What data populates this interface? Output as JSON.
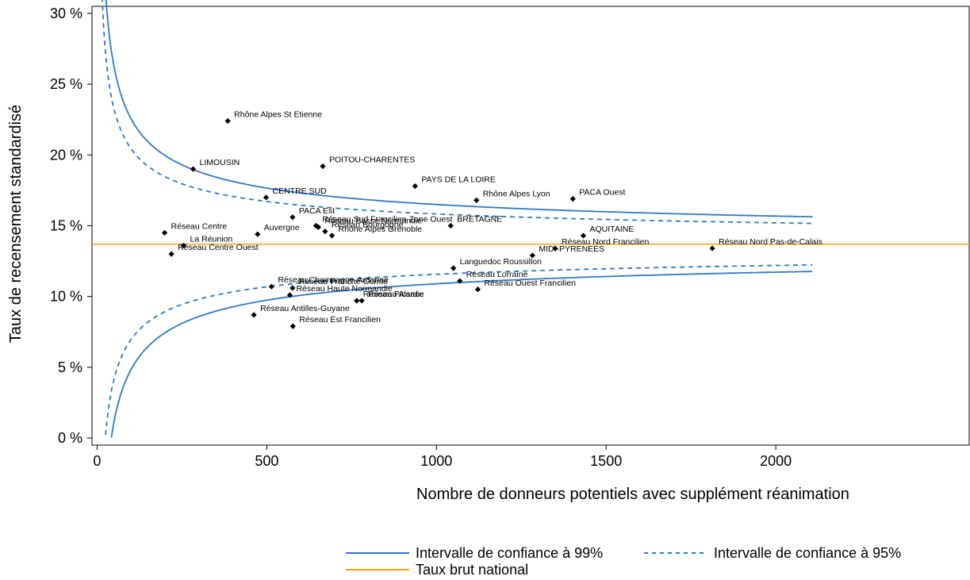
{
  "chart_data": {
    "type": "scatter",
    "xlabel": "Nombre de donneurs potentiels avec supplément réanimation",
    "ylabel": "Taux de recensement standardisé",
    "xlim": [
      -15,
      2570
    ],
    "ylim": [
      -0.5,
      30.5
    ],
    "x_ticks": [
      0,
      500,
      1000,
      1500,
      2000
    ],
    "x_tick_labels": [
      "0",
      "500",
      "1000",
      "1500",
      "2000"
    ],
    "y_ticks": [
      0,
      5,
      10,
      15,
      20,
      25,
      30
    ],
    "y_tick_labels": [
      "0 %",
      "5 %",
      "10 %",
      "15 %",
      "20 %",
      "25 %",
      "30 %"
    ],
    "national_rate": 13.7,
    "funnel": {
      "z99": 2.576,
      "z95": 1.96,
      "n_start": 5,
      "n_end": 2110,
      "color": "#2f78c8"
    },
    "national_color": "#f2a419",
    "points": [
      {
        "label": "Rhône Alpes St Etienne",
        "x": 385,
        "y": 22.4
      },
      {
        "label": "LIMOUSIN",
        "x": 283,
        "y": 19.0
      },
      {
        "label": "POITOU-CHARENTES",
        "x": 665,
        "y": 19.2
      },
      {
        "label": "PAYS DE LA LOIRE",
        "x": 937,
        "y": 17.8
      },
      {
        "label": "Rhône Alpes Lyon",
        "x": 1118,
        "y": 16.8
      },
      {
        "label": "PACA Ouest",
        "x": 1402,
        "y": 16.9
      },
      {
        "label": "CENTRE SUD",
        "x": 498,
        "y": 17.0
      },
      {
        "label": "PACA Est",
        "x": 576,
        "y": 15.6
      },
      {
        "label": "Réseau Sud Francilien Zone Ouest",
        "x": 645,
        "y": 15.0
      },
      {
        "label": "BRETAGNE",
        "x": 1042,
        "y": 15.0
      },
      {
        "label": "Réseau Basse Normandie",
        "x": 652,
        "y": 14.9
      },
      {
        "label": "Réseau Bourgogne",
        "x": 672,
        "y": 14.6
      },
      {
        "label": "Rhône Alpes Grenoble",
        "x": 692,
        "y": 14.3
      },
      {
        "label": "Auvergne",
        "x": 473,
        "y": 14.4
      },
      {
        "label": "Réseau Centre",
        "x": 199,
        "y": 14.5
      },
      {
        "label": "AQUITAINE",
        "x": 1433,
        "y": 14.3
      },
      {
        "label": "Réseau Nord Francilien",
        "x": 1350,
        "y": 13.4
      },
      {
        "label": "Réseau Nord Pas-de-Calais",
        "x": 1813,
        "y": 13.4
      },
      {
        "label": "La Réunion",
        "x": 255,
        "y": 13.6
      },
      {
        "label": "Réseau Centre Ouest",
        "x": 219,
        "y": 13.0
      },
      {
        "label": "MIDI-PYRENEES",
        "x": 1283,
        "y": 12.9
      },
      {
        "label": "Languedoc Roussillon",
        "x": 1050,
        "y": 12.0
      },
      {
        "label": "Réseau Lorraine",
        "x": 1069,
        "y": 11.1
      },
      {
        "label": "Réseau Ouest Francilien",
        "x": 1122,
        "y": 10.5
      },
      {
        "label": "Réseau Champagne-Ardenne",
        "x": 514,
        "y": 10.7
      },
      {
        "label": "Réseau Franche-Comté",
        "x": 576,
        "y": 10.6
      },
      {
        "label": "Réseau Haute Normandie",
        "x": 568,
        "y": 10.1
      },
      {
        "label": "Réseau Picardie",
        "x": 765,
        "y": 9.7
      },
      {
        "label": "Réseau Alsace",
        "x": 780,
        "y": 9.7
      },
      {
        "label": "Réseau Antilles-Guyane",
        "x": 462,
        "y": 8.7
      },
      {
        "label": "Réseau Est Francilien",
        "x": 577,
        "y": 7.9
      }
    ],
    "legend": [
      {
        "key": "ci99",
        "label": "Intervalle de confiance à 99%"
      },
      {
        "key": "ci95",
        "label": "Intervalle de confiance à 95%"
      },
      {
        "key": "national",
        "label": "Taux brut national"
      }
    ]
  }
}
